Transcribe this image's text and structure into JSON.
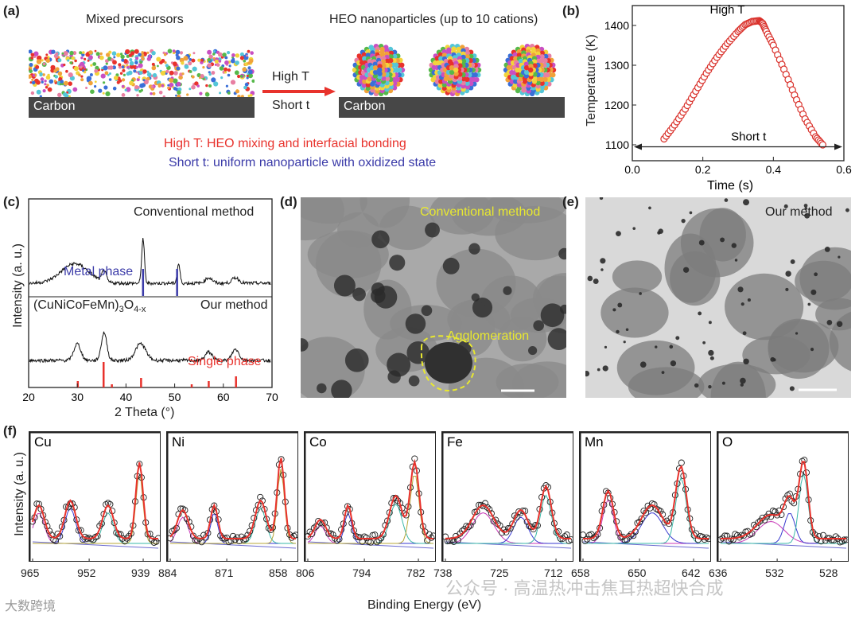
{
  "panel_a": {
    "label": "(a)",
    "left_title": "Mixed precursors",
    "right_title": "HEO nanoparticles (up to 10 cations)",
    "carbon_left": "Carbon",
    "carbon_right": "Carbon",
    "arrow_top": "High T",
    "arrow_bottom": "Short t",
    "note_red": "High T: HEO mixing and interfacial bonding",
    "note_blue": "Short t: uniform nanoparticle with oxidized state",
    "colors": {
      "red": "#e8322c",
      "blue": "#3a3aa8"
    }
  },
  "panel_b": {
    "label": "(b)",
    "peak_label": "High T",
    "duration_label": "Short t",
    "chart_data": {
      "type": "scatter",
      "title": "",
      "xlabel": "Time (s)",
      "ylabel": "Temperature (K)",
      "xlim": [
        0.0,
        0.6
      ],
      "ylim": [
        1060,
        1450
      ],
      "xticks": [
        "0.0",
        "0.2",
        "0.4",
        "0.6"
      ],
      "yticks": [
        "1100",
        "1200",
        "1300",
        "1400"
      ],
      "x": [
        0.09,
        0.12,
        0.15,
        0.18,
        0.21,
        0.24,
        0.27,
        0.3,
        0.32,
        0.34,
        0.36,
        0.37,
        0.38,
        0.4,
        0.43,
        0.46,
        0.49,
        0.52,
        0.54
      ],
      "y": [
        1115,
        1150,
        1190,
        1235,
        1280,
        1320,
        1355,
        1385,
        1402,
        1410,
        1412,
        1405,
        1385,
        1350,
        1290,
        1225,
        1165,
        1120,
        1100
      ],
      "marker_color": "#d9302a"
    }
  },
  "panel_c": {
    "label": "(c)",
    "top_label": "Conventional method",
    "metal_phase": "Metal phase",
    "formula_prefix": "(CuNiCoFeMn)",
    "formula_sub1": "3",
    "formula_mid": "O",
    "formula_sub2": "4-x",
    "our_method": "Our method",
    "single_phase": "Single phase",
    "chart_data": {
      "type": "line",
      "xlabel": "2 Theta (°)",
      "ylabel": "Intensity (a. u.)",
      "xlim": [
        20,
        70
      ],
      "xticks": [
        "20",
        "30",
        "40",
        "50",
        "60",
        "70"
      ],
      "series": [
        {
          "name": "Conventional method",
          "peaks": [
            {
              "x": 29.5,
              "h": 0.35,
              "w": 4
            },
            {
              "x": 35.5,
              "h": 0.2,
              "w": 0.6
            },
            {
              "x": 43.5,
              "h": 0.8,
              "w": 0.4
            },
            {
              "x": 50.8,
              "h": 0.35,
              "w": 0.4
            },
            {
              "x": 57,
              "h": 0.1,
              "w": 1
            },
            {
              "x": 62.5,
              "h": 0.1,
              "w": 1
            }
          ]
        },
        {
          "name": "Our method",
          "peaks": [
            {
              "x": 30,
              "h": 0.3,
              "w": 1
            },
            {
              "x": 35.5,
              "h": 0.5,
              "w": 0.8
            },
            {
              "x": 43,
              "h": 0.3,
              "w": 1.5
            },
            {
              "x": 57,
              "h": 0.15,
              "w": 1
            },
            {
              "x": 62.5,
              "h": 0.2,
              "w": 1
            }
          ]
        }
      ],
      "metal_lines": [
        43.5,
        50.5
      ],
      "spinel_lines": [
        30.1,
        35.4,
        37.1,
        43.1,
        53.5,
        57.0,
        62.6
      ]
    }
  },
  "panel_d": {
    "label": "(d)",
    "title": "Conventional method",
    "note": "Agglomeration"
  },
  "panel_e": {
    "label": "(e)",
    "title": "Our method"
  },
  "panel_f": {
    "label": "(f)",
    "ylabel": "Intensity (a. u.)",
    "xlabel": "Binding Energy (eV)",
    "subplots": [
      {
        "element": "Cu",
        "ticks": [
          "965",
          "952",
          "939"
        ]
      },
      {
        "element": "Ni",
        "ticks": [
          "884",
          "871",
          "858"
        ]
      },
      {
        "element": "Co",
        "ticks": [
          "806",
          "794",
          "782"
        ]
      },
      {
        "element": "Fe",
        "ticks": [
          "738",
          "725",
          "712"
        ]
      },
      {
        "element": "Mn",
        "ticks": [
          "658",
          "650",
          "642"
        ]
      },
      {
        "element": "O",
        "ticks": [
          "636",
          "532",
          "528"
        ]
      }
    ]
  },
  "watermark": {
    "left": "大数跨境",
    "right": "公众号 · 高温热冲击焦耳热超快合成"
  }
}
